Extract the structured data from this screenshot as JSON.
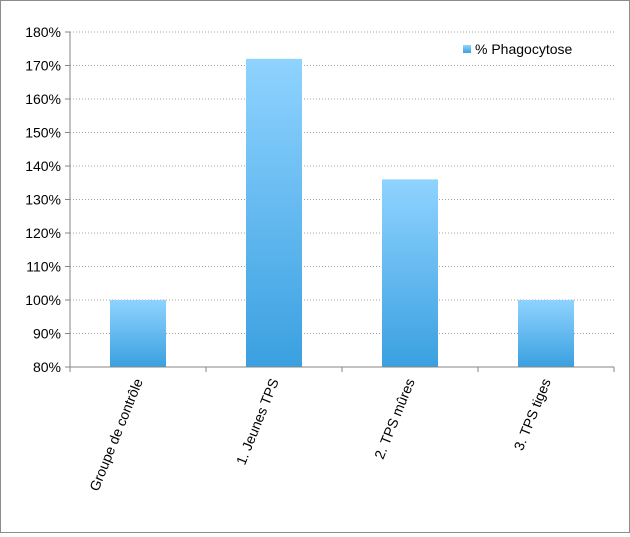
{
  "chart_data": {
    "type": "bar",
    "categories": [
      "Groupe de contrôle",
      "1. Jeunes TPS",
      "2. TPS mûres",
      "3. TPS tiges"
    ],
    "series": [
      {
        "name": "% Phagocytose",
        "values": [
          100,
          172,
          136,
          100
        ]
      }
    ],
    "yticks": [
      "80%",
      "90%",
      "100%",
      "110%",
      "120%",
      "130%",
      "140%",
      "150%",
      "160%",
      "170%",
      "180%"
    ],
    "ylim": [
      80,
      180
    ],
    "grid": true,
    "legend": "top-right",
    "colors": {
      "bar_top": "#8fd3ff",
      "bar_bottom": "#3aa0e0",
      "grid": "#a0a0a0",
      "axis": "#868686"
    }
  }
}
